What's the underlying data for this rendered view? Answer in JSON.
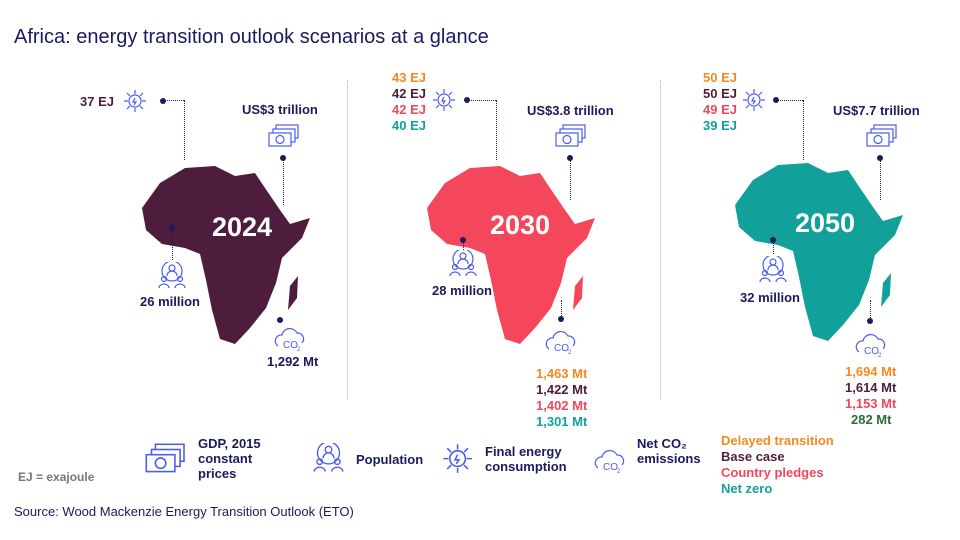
{
  "title": "Africa: energy transition outlook scenarios at a glance",
  "colors": {
    "delayed": "#f5891f",
    "base": "#4e1d3d",
    "pledges": "#f4475b",
    "netzero": "#12a09a",
    "navy": "#1a1a5e"
  },
  "panels": [
    {
      "year": "2024",
      "map_color": "#4e1d3d",
      "energy": [
        "37 EJ"
      ],
      "gdp": "US$3 trillion",
      "population": "26 million",
      "co2": [
        "1,292 Mt"
      ]
    },
    {
      "year": "2030",
      "map_color": "#f4475b",
      "energy": [
        "43 EJ",
        "42 EJ",
        "42 EJ",
        "40 EJ"
      ],
      "gdp": "US$3.8 trillion",
      "population": "28 million",
      "co2": [
        "1,463 Mt",
        "1,422 Mt",
        "1,402 Mt",
        "1,301 Mt"
      ]
    },
    {
      "year": "2050",
      "map_color": "#12a09a",
      "energy": [
        "50 EJ",
        "50 EJ",
        "49 EJ",
        "39 EJ"
      ],
      "gdp": "US$7.7 trillion",
      "population": "32 million",
      "co2": [
        "1,694 Mt",
        "1,614 Mt",
        "1,153 Mt",
        "282 Mt"
      ]
    }
  ],
  "legend": {
    "gdp": "GDP, 2015 constant prices",
    "population": "Population",
    "energy": "Final energy consumption",
    "co2": "Net CO₂ emissions",
    "scenarios": [
      "Delayed transition",
      "Base case",
      "Country pledges",
      "Net zero"
    ]
  },
  "note": "EJ = exajoule",
  "source": "Source: Wood Mackenzie Energy Transition Outlook (ETO)"
}
